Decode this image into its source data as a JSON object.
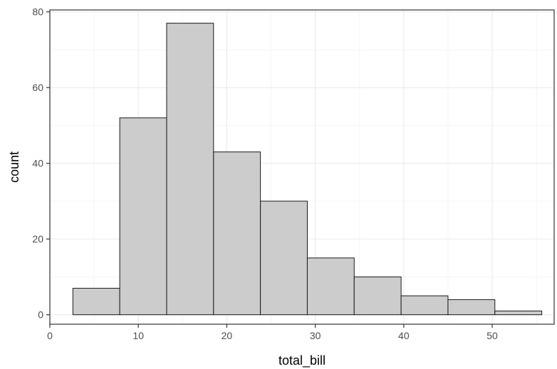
{
  "chart_data": {
    "type": "bar",
    "subtype": "histogram",
    "title": "",
    "xlabel": "total_bill",
    "ylabel": "count",
    "xlim": [
      0,
      57
    ],
    "ylim": [
      -2.5,
      80.5
    ],
    "x_ticks": [
      0,
      10,
      20,
      30,
      40,
      50
    ],
    "y_ticks": [
      0,
      20,
      40,
      60,
      80
    ],
    "grid": true,
    "legend": "none",
    "bins": [
      {
        "x0": 2.6,
        "x1": 7.9,
        "count": 7
      },
      {
        "x0": 7.9,
        "x1": 13.2,
        "count": 52
      },
      {
        "x0": 13.2,
        "x1": 18.5,
        "count": 77
      },
      {
        "x0": 18.5,
        "x1": 23.8,
        "count": 43
      },
      {
        "x0": 23.8,
        "x1": 29.1,
        "count": 30
      },
      {
        "x0": 29.1,
        "x1": 34.4,
        "count": 15
      },
      {
        "x0": 34.4,
        "x1": 39.7,
        "count": 10
      },
      {
        "x0": 39.7,
        "x1": 45.0,
        "count": 5
      },
      {
        "x0": 45.0,
        "x1": 50.3,
        "count": 4
      },
      {
        "x0": 50.3,
        "x1": 55.6,
        "count": 1
      }
    ],
    "colors": {
      "bar_fill": "#cccccc",
      "bar_stroke": "#1a1a1a",
      "grid_major": "#ebebeb",
      "grid_minor": "#f5f5f5",
      "panel_border": "#333333"
    }
  }
}
